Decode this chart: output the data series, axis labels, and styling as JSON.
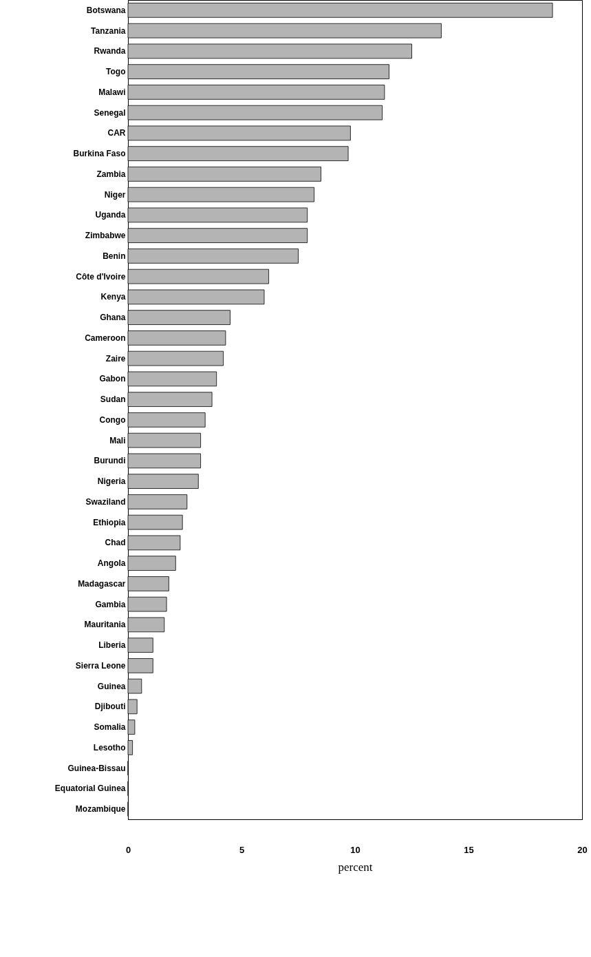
{
  "chart_data": {
    "type": "bar",
    "orientation": "horizontal",
    "xlabel": "percent",
    "categories": [
      "Botswana",
      "Tanzania",
      "Rwanda",
      "Togo",
      "Malawi",
      "Senegal",
      "CAR",
      "Burkina Faso",
      "Zambia",
      "Niger",
      "Uganda",
      "Zimbabwe",
      "Benin",
      "Côte d'Ivoire",
      "Kenya",
      "Ghana",
      "Cameroon",
      "Zaire",
      "Gabon",
      "Sudan",
      "Congo",
      "Mali",
      "Burundi",
      "Nigeria",
      "Swaziland",
      "Ethiopia",
      "Chad",
      "Angola",
      "Madagascar",
      "Gambia",
      "Mauritania",
      "Liberia",
      "Sierra Leone",
      "Guinea",
      "Djibouti",
      "Somalia",
      "Lesotho",
      "Guinea-Bissau",
      "Equatorial Guinea",
      "Mozambique"
    ],
    "values": [
      18.7,
      13.8,
      12.5,
      11.5,
      11.3,
      11.2,
      9.8,
      9.7,
      8.5,
      8.2,
      7.9,
      7.9,
      7.5,
      6.2,
      6.0,
      4.5,
      4.3,
      4.2,
      3.9,
      3.7,
      3.4,
      3.2,
      3.2,
      3.1,
      2.6,
      2.4,
      2.3,
      2.1,
      1.8,
      1.7,
      1.6,
      1.1,
      1.1,
      0.6,
      0.4,
      0.3,
      0.2,
      0,
      0,
      0
    ],
    "color": "#b4b4b4",
    "xlim": [
      0,
      20
    ],
    "xticks": [
      0,
      5,
      10,
      15,
      20
    ],
    "grid": false
  }
}
